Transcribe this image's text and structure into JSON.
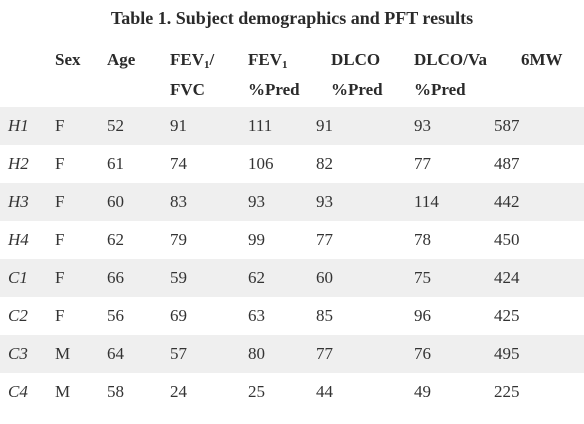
{
  "title": "Table 1. Subject demographics and PFT results",
  "headers": {
    "sex": "Sex",
    "age": "Age",
    "fev1fvc_line1": "FEV",
    "fev1fvc_sub": "1",
    "fev1fvc_slash": "/",
    "fev1fvc_line2": "FVC",
    "fev1pred_line1": "FEV",
    "fev1pred_sub": "1",
    "fev1pred_line2": "%Pred",
    "dlco_line1": "DLCO",
    "dlco_line2": "%Pred",
    "dlcova_line1": "DLCO/Va",
    "dlcova_line2": "%Pred",
    "sixmw": "6MW"
  },
  "rows": [
    {
      "id": "H1",
      "sex": "F",
      "age": "52",
      "fev1fvc": "91",
      "fev1pred": "111",
      "dlco": "91",
      "dlcova": "93",
      "sixmw": "587"
    },
    {
      "id": "H2",
      "sex": "F",
      "age": "61",
      "fev1fvc": "74",
      "fev1pred": "106",
      "dlco": "82",
      "dlcova": "77",
      "sixmw": "487"
    },
    {
      "id": "H3",
      "sex": "F",
      "age": "60",
      "fev1fvc": "83",
      "fev1pred": "93",
      "dlco": "93",
      "dlcova": "114",
      "sixmw": "442"
    },
    {
      "id": "H4",
      "sex": "F",
      "age": "62",
      "fev1fvc": "79",
      "fev1pred": "99",
      "dlco": "77",
      "dlcova": "78",
      "sixmw": "450"
    },
    {
      "id": "C1",
      "sex": "F",
      "age": "66",
      "fev1fvc": "59",
      "fev1pred": "62",
      "dlco": "60",
      "dlcova": "75",
      "sixmw": "424"
    },
    {
      "id": "C2",
      "sex": "F",
      "age": "56",
      "fev1fvc": "69",
      "fev1pred": "63",
      "dlco": "85",
      "dlcova": "96",
      "sixmw": "425"
    },
    {
      "id": "C3",
      "sex": "M",
      "age": "64",
      "fev1fvc": "57",
      "fev1pred": "80",
      "dlco": "77",
      "dlcova": "76",
      "sixmw": "495"
    },
    {
      "id": "C4",
      "sex": "M",
      "age": "58",
      "fev1fvc": "24",
      "fev1pred": "25",
      "dlco": "44",
      "dlcova": "49",
      "sixmw": "225"
    }
  ]
}
